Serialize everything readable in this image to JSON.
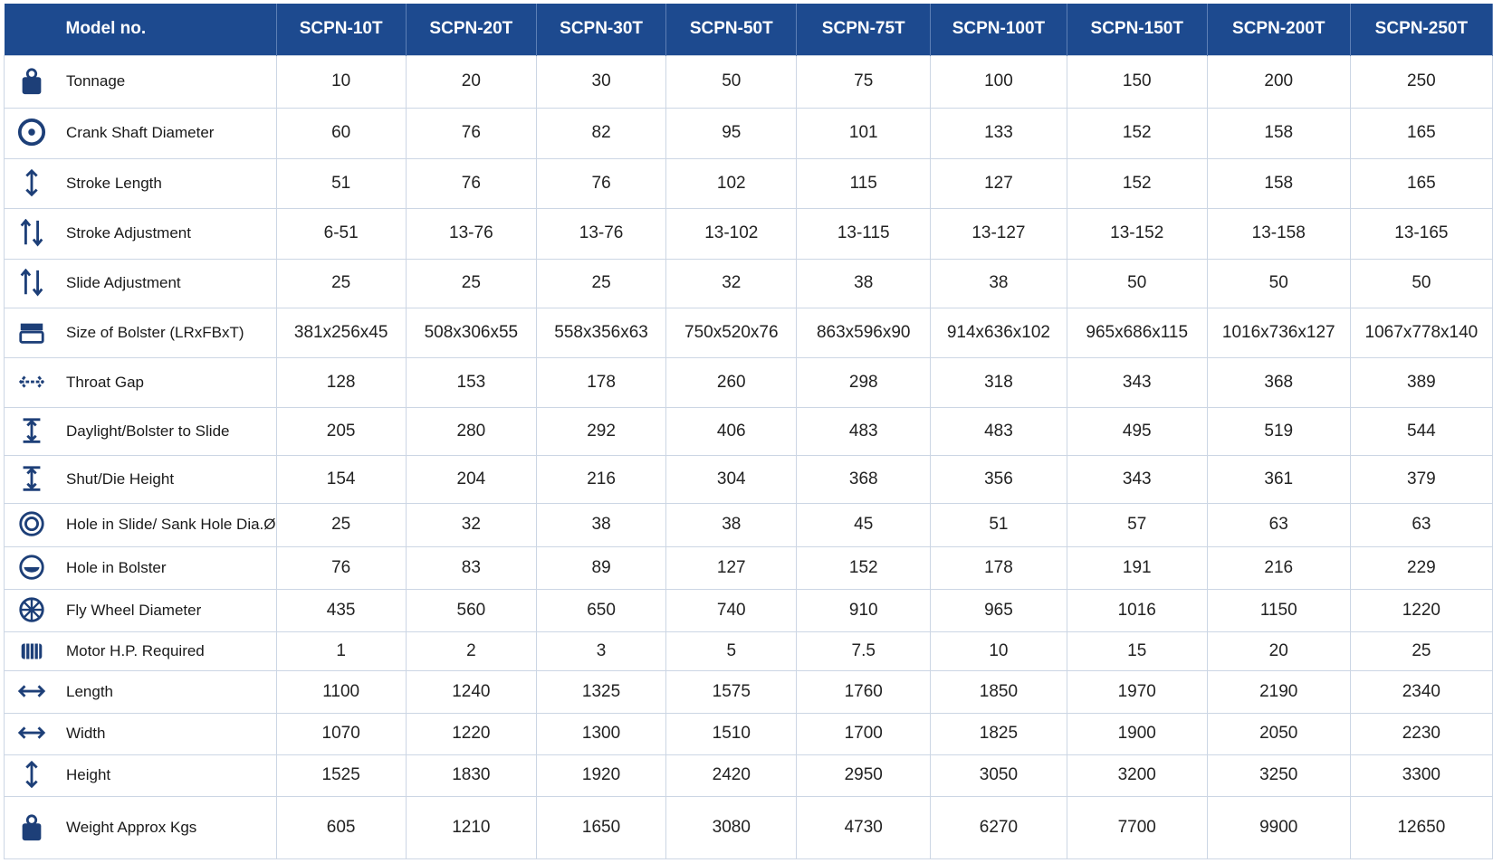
{
  "table": {
    "header": [
      "Model no.",
      "SCPN-10T",
      "SCPN-20T",
      "SCPN-30T",
      "SCPN-50T",
      "SCPN-75T",
      "SCPN-100T",
      "SCPN-150T",
      "SCPN-200T",
      "SCPN-250T"
    ],
    "rows": [
      {
        "label": "Tonnage",
        "values": [
          "10",
          "20",
          "30",
          "50",
          "75",
          "100",
          "150",
          "200",
          "250"
        ]
      },
      {
        "label": "Crank Shaft Diameter",
        "values": [
          "60",
          "76",
          "82",
          "95",
          "101",
          "133",
          "152",
          "158",
          "165"
        ]
      },
      {
        "label": "Stroke Length",
        "values": [
          "51",
          "76",
          "76",
          "102",
          "115",
          "127",
          "152",
          "158",
          "165"
        ]
      },
      {
        "label": "Stroke Adjustment",
        "values": [
          "6-51",
          "13-76",
          "13-76",
          "13-102",
          "13-115",
          "13-127",
          "13-152",
          "13-158",
          "13-165"
        ]
      },
      {
        "label": "Slide Adjustment",
        "values": [
          "25",
          "25",
          "25",
          "32",
          "38",
          "38",
          "50",
          "50",
          "50"
        ]
      },
      {
        "label": "Size of Bolster (LRxFBxT)",
        "values": [
          "381x256x45",
          "508x306x55",
          "558x356x63",
          "750x520x76",
          "863x596x90",
          "914x636x102",
          "965x686x115",
          "1016x736x127",
          "1067x778x140"
        ]
      },
      {
        "label": "Throat Gap",
        "values": [
          "128",
          "153",
          "178",
          "260",
          "298",
          "318",
          "343",
          "368",
          "389"
        ]
      },
      {
        "label": "Daylight/Bolster to Slide",
        "values": [
          "205",
          "280",
          "292",
          "406",
          "483",
          "483",
          "495",
          "519",
          "544"
        ]
      },
      {
        "label": "Shut/Die Height",
        "values": [
          "154",
          "204",
          "216",
          "304",
          "368",
          "356",
          "343",
          "361",
          "379"
        ]
      },
      {
        "label": "Hole in Slide/ Sank Hole Dia.Ø",
        "values": [
          "25",
          "32",
          "38",
          "38",
          "45",
          "51",
          "57",
          "63",
          "63"
        ]
      },
      {
        "label": "Hole in Bolster",
        "values": [
          "76",
          "83",
          "89",
          "127",
          "152",
          "178",
          "191",
          "216",
          "229"
        ]
      },
      {
        "label": "Fly Wheel Diameter",
        "values": [
          "435",
          "560",
          "650",
          "740",
          "910",
          "965",
          "1016",
          "1150",
          "1220"
        ]
      },
      {
        "label": "Motor H.P. Required",
        "values": [
          "1",
          "2",
          "3",
          "5",
          "7.5",
          "10",
          "15",
          "20",
          "25"
        ]
      },
      {
        "label": "Length",
        "values": [
          "1100",
          "1240",
          "1325",
          "1575",
          "1760",
          "1850",
          "1970",
          "2190",
          "2340"
        ]
      },
      {
        "label": "Width",
        "values": [
          "1070",
          "1220",
          "1300",
          "1510",
          "1700",
          "1825",
          "1900",
          "2050",
          "2230"
        ]
      },
      {
        "label": "Height",
        "values": [
          "1525",
          "1830",
          "1920",
          "2420",
          "2950",
          "3050",
          "3200",
          "3250",
          "3300"
        ]
      },
      {
        "label": "Weight Approx Kgs",
        "values": [
          "605",
          "1210",
          "1650",
          "3080",
          "4730",
          "6270",
          "7700",
          "9900",
          "12650"
        ]
      }
    ]
  }
}
